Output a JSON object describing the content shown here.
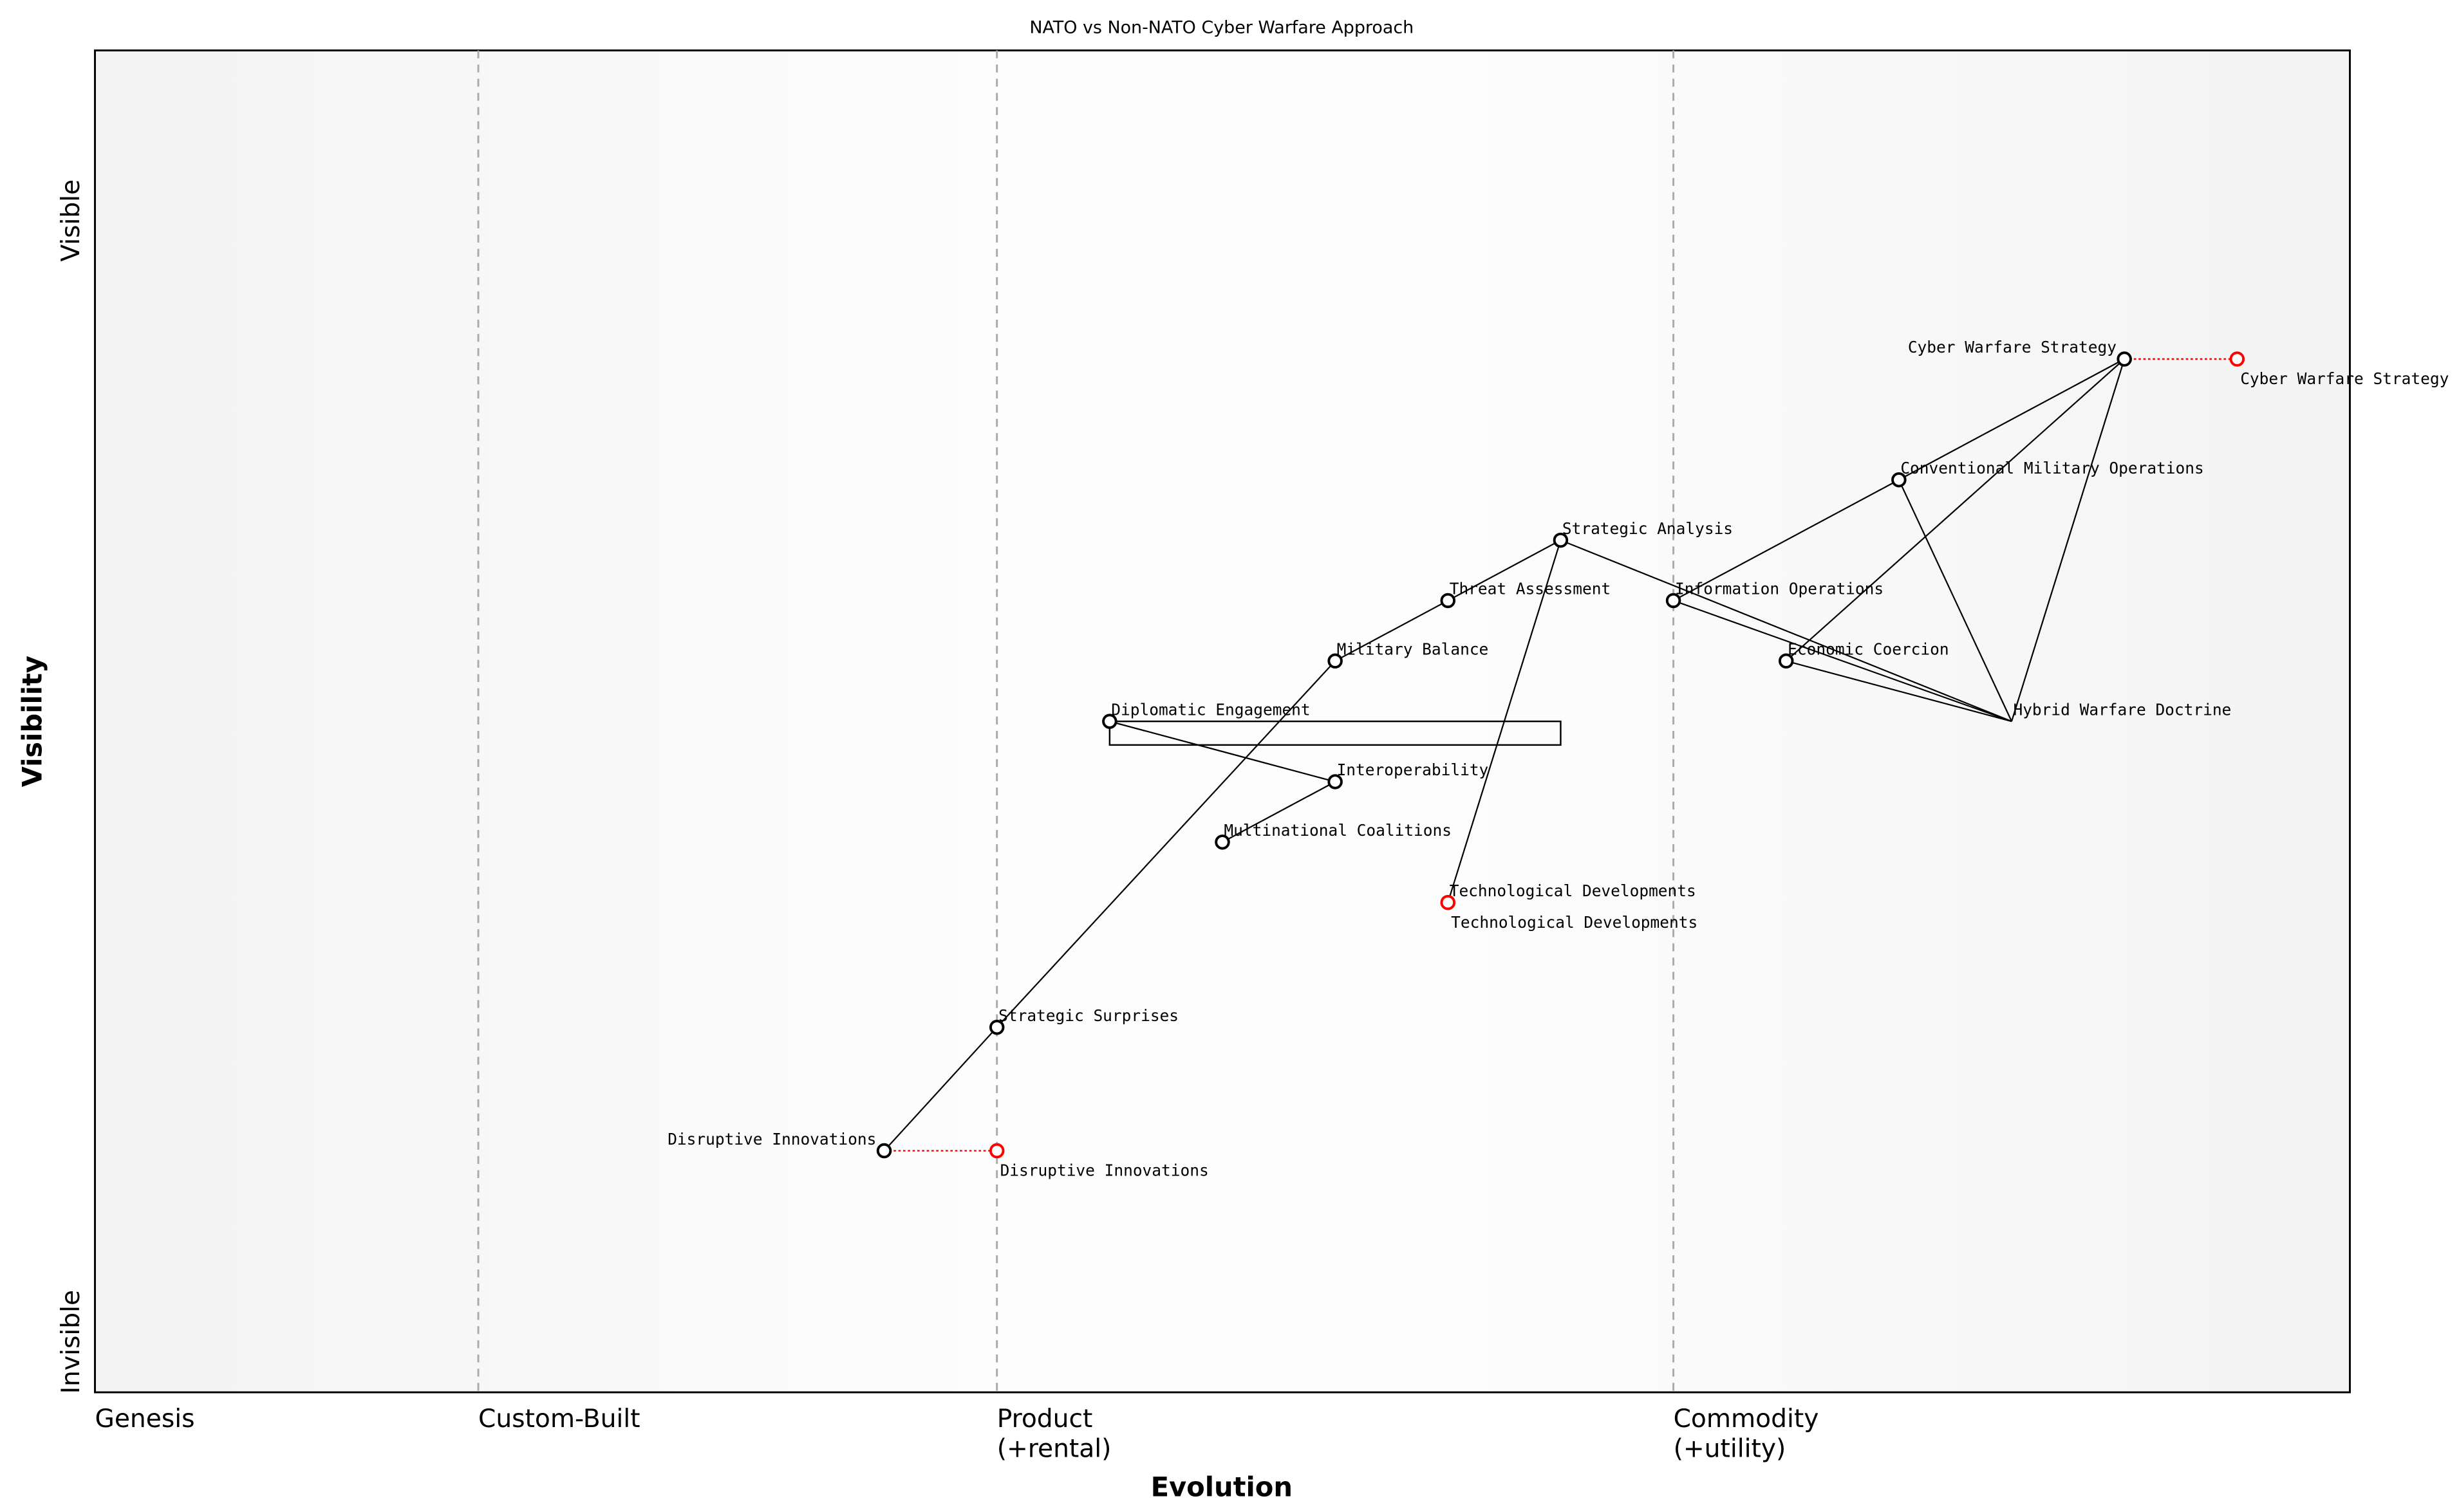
{
  "chart_data": {
    "type": "wardley-map",
    "title": "NATO vs Non-NATO Cyber Warfare Approach",
    "xlabel": "Evolution",
    "ylabel": "Visibility",
    "y_ticks": {
      "top": "Visible",
      "bottom": "Invisible"
    },
    "x_stages": [
      {
        "label": "Genesis",
        "at": 0.0
      },
      {
        "label": "Custom-Built",
        "at": 0.17
      },
      {
        "label": "Product",
        "sub": "(+rental)",
        "at": 0.4
      },
      {
        "label": "Commodity",
        "sub": "(+utility)",
        "at": 0.7
      }
    ],
    "xlim": [
      0,
      1
    ],
    "ylim": [
      0,
      1
    ],
    "components": [
      {
        "name": "Cyber Warfare Strategy",
        "evolution": 0.9,
        "visibility": 0.77
      },
      {
        "name": "Conventional Military Operations",
        "evolution": 0.8,
        "visibility": 0.68
      },
      {
        "name": "Strategic Analysis",
        "evolution": 0.65,
        "visibility": 0.635
      },
      {
        "name": "Threat Assessment",
        "evolution": 0.6,
        "visibility": 0.59
      },
      {
        "name": "Information Operations",
        "evolution": 0.7,
        "visibility": 0.59
      },
      {
        "name": "Economic Coercion",
        "evolution": 0.75,
        "visibility": 0.545
      },
      {
        "name": "Hybrid Warfare Doctrine",
        "evolution": 0.85,
        "visibility": 0.5,
        "marker": false
      },
      {
        "name": "Military Balance",
        "evolution": 0.55,
        "visibility": 0.545
      },
      {
        "name": "Diplomatic Engagement",
        "evolution": 0.45,
        "visibility": 0.5
      },
      {
        "name": "Interoperability",
        "evolution": 0.55,
        "visibility": 0.455
      },
      {
        "name": "Multinational Coalitions",
        "evolution": 0.5,
        "visibility": 0.41
      },
      {
        "name": "Technological Developments",
        "evolution": 0.6,
        "visibility": 0.365,
        "color": "#ff0000"
      },
      {
        "name": "Strategic Surprises",
        "evolution": 0.4,
        "visibility": 0.272
      },
      {
        "name": "Disruptive Innovations",
        "evolution": 0.35,
        "visibility": 0.18
      }
    ],
    "evolve": [
      {
        "name": "Cyber Warfare Strategy",
        "from": 0.9,
        "to": 0.95,
        "visibility": 0.77
      },
      {
        "name": "Disruptive Innovations",
        "from": 0.35,
        "to": 0.4,
        "visibility": 0.18
      },
      {
        "name": "Technological Developments",
        "from": 0.6,
        "to": 0.6,
        "visibility": 0.365
      }
    ],
    "links": [
      [
        "Cyber Warfare Strategy",
        "Conventional Military Operations"
      ],
      [
        "Cyber Warfare Strategy",
        "Economic Coercion"
      ],
      [
        "Cyber Warfare Strategy",
        "Hybrid Warfare Doctrine"
      ],
      [
        "Conventional Military Operations",
        "Information Operations"
      ],
      [
        "Conventional Military Operations",
        "Hybrid Warfare Doctrine"
      ],
      [
        "Strategic Analysis",
        "Hybrid Warfare Doctrine"
      ],
      [
        "Information Operations",
        "Hybrid Warfare Doctrine"
      ],
      [
        "Economic Coercion",
        "Hybrid Warfare Doctrine"
      ],
      [
        "Strategic Analysis",
        "Threat Assessment"
      ],
      [
        "Threat Assessment",
        "Military Balance"
      ],
      [
        "Military Balance",
        "Strategic Surprises"
      ],
      [
        "Strategic Surprises",
        "Disruptive Innovations"
      ],
      [
        "Strategic Analysis",
        "Technological Developments"
      ],
      [
        "Diplomatic Engagement",
        "Interoperability"
      ],
      [
        "Interoperability",
        "Multinational Coalitions"
      ]
    ],
    "pipelines": [
      {
        "name": "Diplomatic Engagement",
        "from": 0.45,
        "to": 0.65,
        "visibility": 0.5
      }
    ],
    "colors": {
      "component": "#000000",
      "evolve": "#ff0000",
      "stage_line": "#aaaaaa",
      "band": "#f5f5f5"
    }
  }
}
